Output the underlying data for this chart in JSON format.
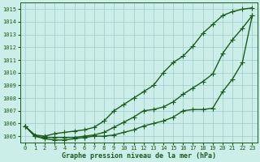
{
  "xlabel": "Graphe pression niveau de la mer (hPa)",
  "ylim": [
    1004.5,
    1015.5
  ],
  "xlim": [
    -0.5,
    23.5
  ],
  "yticks": [
    1005,
    1006,
    1007,
    1008,
    1009,
    1010,
    1011,
    1012,
    1013,
    1014,
    1015
  ],
  "xticks": [
    0,
    1,
    2,
    3,
    4,
    5,
    6,
    7,
    8,
    9,
    10,
    11,
    12,
    13,
    14,
    15,
    16,
    17,
    18,
    19,
    20,
    21,
    22,
    23
  ],
  "background_color": "#cceee8",
  "plot_bg_color": "#cceee8",
  "grid_color": "#99cccc",
  "line_color": "#1a5c1a",
  "marker": "P",
  "markersize": 2.8,
  "linewidth": 1.0,
  "series": {
    "high": [
      1005.8,
      1005.1,
      1005.0,
      1005.2,
      1005.3,
      1005.4,
      1005.5,
      1005.7,
      1006.2,
      1007.0,
      1007.5,
      1008.0,
      1008.5,
      1009.0,
      1010.0,
      1010.8,
      1011.3,
      1012.1,
      1013.1,
      1013.8,
      1014.5,
      1014.8,
      1015.0,
      1015.1
    ],
    "mid": [
      1005.8,
      1005.0,
      1004.9,
      1004.9,
      1004.9,
      1004.9,
      1005.0,
      1005.1,
      1005.3,
      1005.7,
      1006.1,
      1006.5,
      1007.0,
      1007.1,
      1007.3,
      1007.7,
      1008.3,
      1008.8,
      1009.3,
      1009.9,
      1011.5,
      1012.6,
      1013.5,
      1014.5
    ],
    "low": [
      1005.8,
      1005.0,
      1004.8,
      1004.7,
      1004.7,
      1004.8,
      1004.9,
      1005.0,
      1005.0,
      1005.1,
      1005.3,
      1005.5,
      1005.8,
      1006.0,
      1006.2,
      1006.5,
      1007.0,
      1007.1,
      1007.1,
      1007.2,
      1008.5,
      1009.5,
      1010.8,
      1014.5
    ]
  }
}
